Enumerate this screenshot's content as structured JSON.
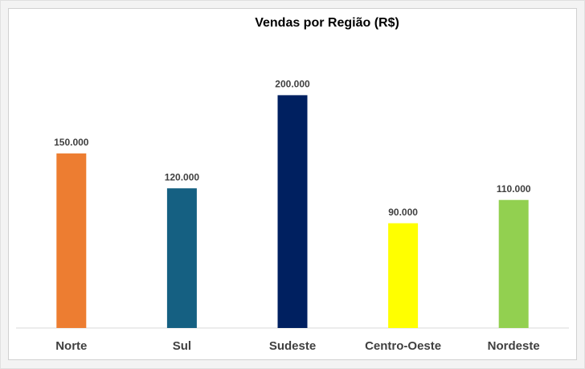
{
  "chart_data": {
    "type": "bar",
    "title": "Vendas por Região (R$)",
    "categories": [
      "Norte",
      "Sul",
      "Sudeste",
      "Centro-Oeste",
      "Nordeste"
    ],
    "values": [
      150000,
      120000,
      200000,
      90000,
      110000
    ],
    "value_labels": [
      "150.000",
      "120.000",
      "200.000",
      "90.000",
      "110.000"
    ],
    "colors": [
      "#ed7d31",
      "#156082",
      "#002060",
      "#ffff00",
      "#92d050"
    ],
    "ylim": [
      0,
      250000
    ]
  }
}
